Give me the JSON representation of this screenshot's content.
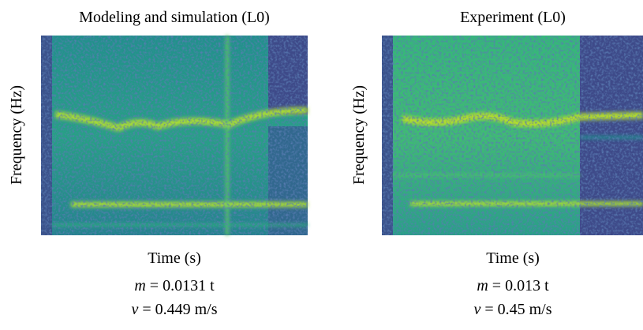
{
  "panels": [
    {
      "title": "Modeling and simulation (L0)",
      "x_label": "Time (s)",
      "y_label": "Frequency (Hz)",
      "mass_symbol": "m",
      "mass_text": "= 0.0131 t",
      "velocity_symbol": "v",
      "velocity_text": "= 0.449 m/s"
    },
    {
      "title": "Experiment (L0)",
      "x_label": "Time (s)",
      "y_label": "Frequency (Hz)",
      "mass_symbol": "m",
      "mass_text": "= 0.013 t",
      "velocity_symbol": "v",
      "velocity_text": "= 0.45 m/s"
    }
  ]
}
